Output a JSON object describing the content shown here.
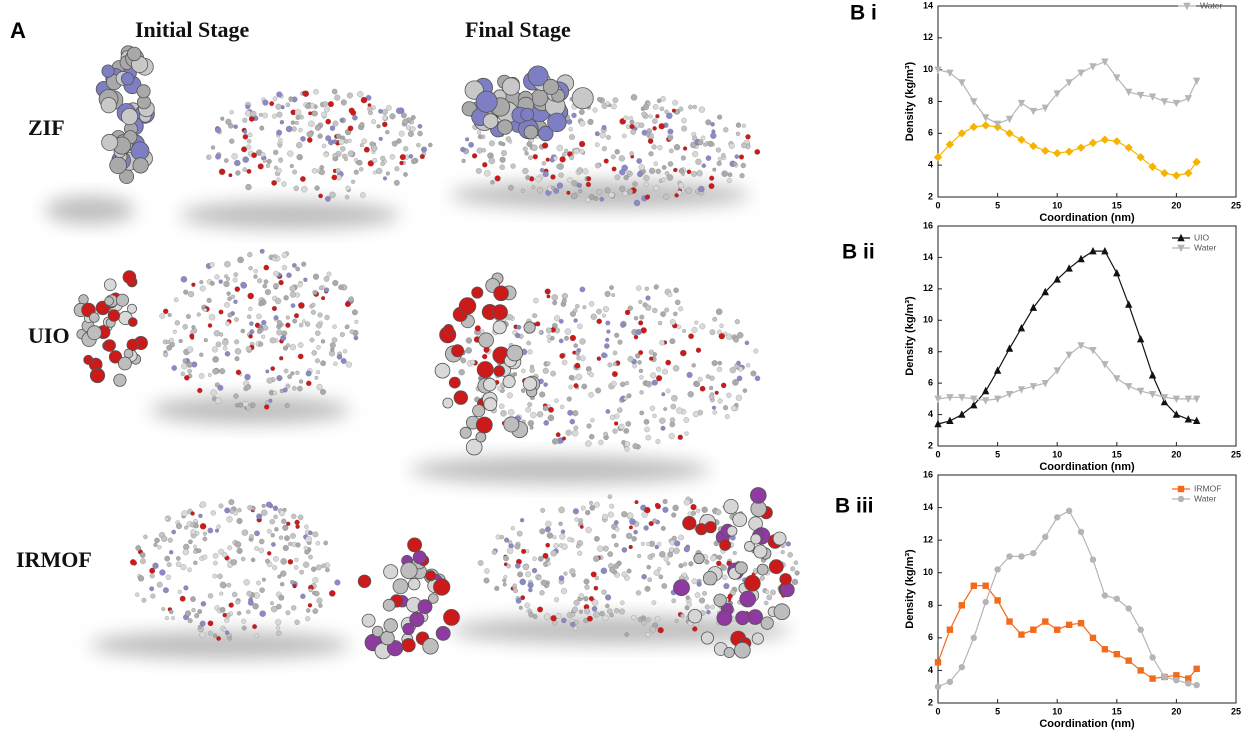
{
  "panel_a": {
    "label": "A",
    "columns": [
      "Initial Stage",
      "Final Stage"
    ],
    "rows": [
      "ZIF",
      "UIO",
      "IRMOF"
    ]
  },
  "chart_data": [
    {
      "type": "line",
      "panel": "B i",
      "xlabel": "Coordination (nm)",
      "ylabel": "Density (kg/m³)",
      "x": [
        0,
        1,
        2,
        3,
        4,
        5,
        6,
        7,
        8,
        9,
        10,
        11,
        12,
        13,
        14,
        15,
        16,
        17,
        18,
        19,
        20,
        21,
        21.7
      ],
      "xlim": [
        0,
        25
      ],
      "xticks": [
        0,
        5,
        10,
        15,
        20,
        25
      ],
      "ylim": [
        2,
        14
      ],
      "yticks": [
        2,
        4,
        6,
        8,
        10,
        12,
        14
      ],
      "series": [
        {
          "color": "#f5b400",
          "marker": "diamond",
          "values": [
            4.5,
            5.3,
            6.0,
            6.4,
            6.5,
            6.4,
            6.0,
            5.6,
            5.2,
            4.9,
            4.75,
            4.85,
            5.1,
            5.4,
            5.6,
            5.5,
            5.1,
            4.5,
            3.9,
            3.5,
            3.35,
            3.5,
            4.2
          ]
        },
        {
          "name": "Water",
          "color": "#b5b5b5",
          "marker": "triangle-down",
          "values": [
            10.0,
            9.8,
            9.2,
            8.0,
            7.0,
            6.6,
            6.9,
            7.9,
            7.4,
            7.6,
            8.5,
            9.2,
            9.8,
            10.2,
            10.5,
            9.5,
            8.6,
            8.4,
            8.3,
            8.0,
            7.9,
            8.2,
            9.3
          ]
        }
      ]
    },
    {
      "type": "line",
      "panel": "B ii",
      "xlabel": "Coordination (nm)",
      "ylabel": "Density (kg/m³)",
      "x": [
        0,
        1,
        2,
        3,
        4,
        5,
        6,
        7,
        8,
        9,
        10,
        11,
        12,
        13,
        14,
        15,
        16,
        17,
        18,
        19,
        20,
        21,
        21.7
      ],
      "xlim": [
        0,
        25
      ],
      "xticks": [
        0,
        5,
        10,
        15,
        20,
        25
      ],
      "ylim": [
        2,
        16
      ],
      "yticks": [
        2,
        4,
        6,
        8,
        10,
        12,
        14,
        16
      ],
      "series": [
        {
          "name": "UIO",
          "color": "#111111",
          "marker": "triangle-up",
          "values": [
            3.4,
            3.6,
            4.0,
            4.6,
            5.5,
            6.8,
            8.2,
            9.5,
            10.8,
            11.8,
            12.6,
            13.3,
            13.9,
            14.4,
            14.4,
            13.0,
            11.0,
            8.8,
            6.5,
            4.8,
            4.0,
            3.7,
            3.6
          ]
        },
        {
          "name": "Water",
          "color": "#b5b5b5",
          "marker": "triangle-down",
          "values": [
            5.0,
            5.1,
            5.1,
            5.0,
            4.9,
            5.0,
            5.3,
            5.6,
            5.8,
            6.0,
            6.8,
            7.8,
            8.4,
            8.1,
            7.2,
            6.3,
            5.8,
            5.5,
            5.3,
            5.1,
            5.0,
            5.0,
            5.0
          ]
        }
      ]
    },
    {
      "type": "line",
      "panel": "B iii",
      "xlabel": "Coordination (nm)",
      "ylabel": "Density (kg/m³)",
      "x": [
        0,
        1,
        2,
        3,
        4,
        5,
        6,
        7,
        8,
        9,
        10,
        11,
        12,
        13,
        14,
        15,
        16,
        17,
        18,
        19,
        20,
        21,
        21.7
      ],
      "xlim": [
        0,
        25
      ],
      "xticks": [
        0,
        5,
        10,
        15,
        20,
        25
      ],
      "ylim": [
        2,
        16
      ],
      "yticks": [
        2,
        4,
        6,
        8,
        10,
        12,
        14,
        16
      ],
      "series": [
        {
          "name": "IRMOF",
          "color": "#f26a1b",
          "marker": "square",
          "values": [
            4.5,
            6.5,
            8.0,
            9.2,
            9.2,
            8.3,
            7.0,
            6.2,
            6.5,
            7.0,
            6.5,
            6.8,
            6.9,
            6.0,
            5.3,
            5.0,
            4.6,
            4.0,
            3.5,
            3.6,
            3.7,
            3.5,
            4.1
          ]
        },
        {
          "name": "Water",
          "color": "#b5b5b5",
          "marker": "circle",
          "values": [
            3.0,
            3.3,
            4.2,
            6.0,
            8.2,
            10.2,
            11.0,
            11.0,
            11.2,
            12.2,
            13.4,
            13.8,
            12.5,
            10.8,
            8.6,
            8.4,
            7.8,
            6.5,
            4.8,
            3.6,
            3.4,
            3.2,
            3.1
          ]
        }
      ]
    }
  ]
}
